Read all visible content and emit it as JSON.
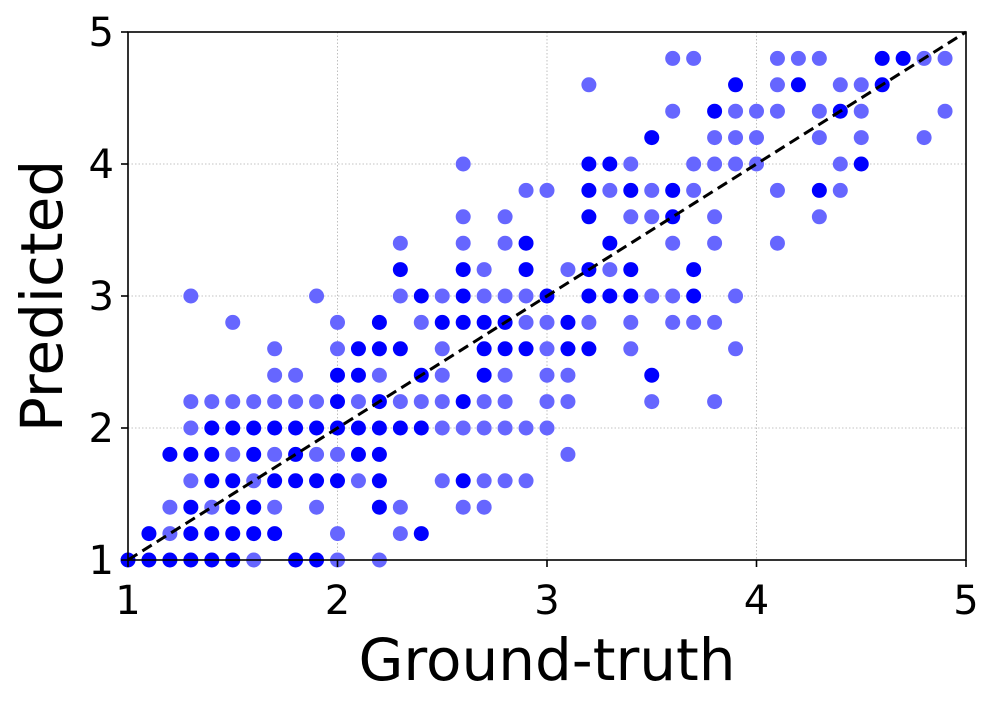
{
  "chart_data": {
    "type": "scatter",
    "title": "",
    "xlabel": "Ground-truth",
    "ylabel": "Predicted",
    "xlim": [
      1,
      5
    ],
    "ylim": [
      1,
      5
    ],
    "xticks": [
      1,
      2,
      3,
      4,
      5
    ],
    "yticks": [
      1,
      2,
      3,
      4,
      5
    ],
    "xtick_labels": [
      "1",
      "2",
      "3",
      "4",
      "5"
    ],
    "ytick_labels": [
      "1",
      "2",
      "3",
      "4",
      "5"
    ],
    "grid": true,
    "reference_line": {
      "from": [
        1,
        1
      ],
      "to": [
        5,
        5
      ],
      "style": "dashed",
      "color": "#000000"
    },
    "colors": {
      "point": "#0000ff",
      "point_light": "#6666ff"
    },
    "points": [
      [
        1.0,
        1.0,
        1
      ],
      [
        1.1,
        1.0,
        1
      ],
      [
        1.1,
        1.2,
        1
      ],
      [
        1.2,
        1.0,
        1
      ],
      [
        1.2,
        1.2,
        0
      ],
      [
        1.2,
        1.8,
        1
      ],
      [
        1.2,
        1.4,
        0
      ],
      [
        1.3,
        1.0,
        1
      ],
      [
        1.3,
        1.2,
        1
      ],
      [
        1.3,
        1.4,
        1
      ],
      [
        1.3,
        1.6,
        0
      ],
      [
        1.3,
        1.8,
        1
      ],
      [
        1.3,
        2.0,
        0
      ],
      [
        1.3,
        2.2,
        0
      ],
      [
        1.3,
        3.0,
        0
      ],
      [
        1.4,
        1.0,
        1
      ],
      [
        1.4,
        1.2,
        1
      ],
      [
        1.4,
        1.4,
        0
      ],
      [
        1.4,
        1.6,
        1
      ],
      [
        1.4,
        1.8,
        1
      ],
      [
        1.4,
        2.0,
        1
      ],
      [
        1.4,
        2.2,
        0
      ],
      [
        1.5,
        1.0,
        1
      ],
      [
        1.5,
        1.2,
        1
      ],
      [
        1.5,
        1.4,
        1
      ],
      [
        1.5,
        1.6,
        1
      ],
      [
        1.5,
        1.8,
        0
      ],
      [
        1.5,
        2.0,
        1
      ],
      [
        1.5,
        2.2,
        0
      ],
      [
        1.5,
        2.8,
        0
      ],
      [
        1.6,
        1.0,
        0
      ],
      [
        1.6,
        1.2,
        1
      ],
      [
        1.6,
        1.4,
        1
      ],
      [
        1.6,
        1.6,
        0
      ],
      [
        1.6,
        1.8,
        1
      ],
      [
        1.6,
        2.0,
        1
      ],
      [
        1.6,
        2.2,
        0
      ],
      [
        1.7,
        1.2,
        1
      ],
      [
        1.7,
        1.4,
        0
      ],
      [
        1.7,
        1.6,
        1
      ],
      [
        1.7,
        1.8,
        0
      ],
      [
        1.7,
        2.0,
        1
      ],
      [
        1.7,
        2.2,
        0
      ],
      [
        1.7,
        2.4,
        0
      ],
      [
        1.7,
        2.6,
        0
      ],
      [
        1.8,
        1.0,
        1
      ],
      [
        1.8,
        1.6,
        1
      ],
      [
        1.8,
        1.8,
        1
      ],
      [
        1.8,
        2.0,
        1
      ],
      [
        1.8,
        2.2,
        0
      ],
      [
        1.8,
        2.4,
        0
      ],
      [
        1.9,
        1.0,
        1
      ],
      [
        1.9,
        1.4,
        0
      ],
      [
        1.9,
        1.6,
        1
      ],
      [
        1.9,
        1.8,
        0
      ],
      [
        1.9,
        2.0,
        1
      ],
      [
        1.9,
        2.2,
        0
      ],
      [
        1.9,
        3.0,
        0
      ],
      [
        2.0,
        1.0,
        0
      ],
      [
        2.0,
        1.2,
        0
      ],
      [
        2.0,
        1.6,
        1
      ],
      [
        2.0,
        1.8,
        0
      ],
      [
        2.0,
        2.0,
        1
      ],
      [
        2.0,
        2.2,
        1
      ],
      [
        2.0,
        2.4,
        1
      ],
      [
        2.0,
        2.6,
        0
      ],
      [
        2.0,
        2.8,
        0
      ],
      [
        2.1,
        1.6,
        0
      ],
      [
        2.1,
        1.8,
        1
      ],
      [
        2.1,
        2.0,
        1
      ],
      [
        2.1,
        2.2,
        0
      ],
      [
        2.1,
        2.4,
        1
      ],
      [
        2.1,
        2.6,
        1
      ],
      [
        2.2,
        1.0,
        0
      ],
      [
        2.2,
        1.4,
        1
      ],
      [
        2.2,
        1.6,
        1
      ],
      [
        2.2,
        1.8,
        1
      ],
      [
        2.2,
        2.0,
        1
      ],
      [
        2.2,
        2.2,
        1
      ],
      [
        2.2,
        2.4,
        0
      ],
      [
        2.2,
        2.6,
        1
      ],
      [
        2.2,
        2.8,
        1
      ],
      [
        2.3,
        1.2,
        0
      ],
      [
        2.3,
        1.4,
        0
      ],
      [
        2.3,
        2.0,
        1
      ],
      [
        2.3,
        2.2,
        0
      ],
      [
        2.3,
        2.6,
        1
      ],
      [
        2.3,
        3.0,
        0
      ],
      [
        2.3,
        3.2,
        1
      ],
      [
        2.3,
        3.4,
        0
      ],
      [
        2.4,
        1.2,
        1
      ],
      [
        2.4,
        2.0,
        1
      ],
      [
        2.4,
        2.2,
        0
      ],
      [
        2.4,
        2.4,
        1
      ],
      [
        2.4,
        2.8,
        0
      ],
      [
        2.4,
        3.0,
        1
      ],
      [
        2.5,
        1.6,
        0
      ],
      [
        2.5,
        2.0,
        0
      ],
      [
        2.5,
        2.2,
        0
      ],
      [
        2.5,
        2.4,
        0
      ],
      [
        2.5,
        2.6,
        0
      ],
      [
        2.5,
        2.8,
        1
      ],
      [
        2.5,
        3.0,
        0
      ],
      [
        2.6,
        1.4,
        0
      ],
      [
        2.6,
        1.6,
        1
      ],
      [
        2.6,
        2.0,
        0
      ],
      [
        2.6,
        2.2,
        1
      ],
      [
        2.6,
        2.8,
        1
      ],
      [
        2.6,
        3.0,
        1
      ],
      [
        2.6,
        3.2,
        1
      ],
      [
        2.6,
        3.4,
        0
      ],
      [
        2.6,
        3.6,
        0
      ],
      [
        2.6,
        4.0,
        0
      ],
      [
        2.7,
        1.4,
        0
      ],
      [
        2.7,
        1.6,
        0
      ],
      [
        2.7,
        2.0,
        0
      ],
      [
        2.7,
        2.2,
        0
      ],
      [
        2.7,
        2.4,
        1
      ],
      [
        2.7,
        2.6,
        1
      ],
      [
        2.7,
        2.8,
        1
      ],
      [
        2.7,
        3.0,
        0
      ],
      [
        2.7,
        3.2,
        0
      ],
      [
        2.8,
        1.6,
        0
      ],
      [
        2.8,
        2.0,
        0
      ],
      [
        2.8,
        2.2,
        0
      ],
      [
        2.8,
        2.4,
        0
      ],
      [
        2.8,
        2.6,
        1
      ],
      [
        2.8,
        2.8,
        1
      ],
      [
        2.8,
        3.0,
        0
      ],
      [
        2.8,
        3.4,
        0
      ],
      [
        2.8,
        3.6,
        0
      ],
      [
        2.9,
        1.6,
        0
      ],
      [
        2.9,
        2.0,
        0
      ],
      [
        2.9,
        2.6,
        1
      ],
      [
        2.9,
        2.8,
        0
      ],
      [
        2.9,
        3.0,
        0
      ],
      [
        2.9,
        3.2,
        1
      ],
      [
        2.9,
        3.4,
        1
      ],
      [
        2.9,
        3.8,
        0
      ],
      [
        3.0,
        2.0,
        0
      ],
      [
        3.0,
        2.2,
        0
      ],
      [
        3.0,
        2.4,
        0
      ],
      [
        3.0,
        2.6,
        0
      ],
      [
        3.0,
        2.8,
        0
      ],
      [
        3.0,
        3.0,
        1
      ],
      [
        3.0,
        3.8,
        0
      ],
      [
        3.1,
        1.8,
        0
      ],
      [
        3.1,
        2.2,
        0
      ],
      [
        3.1,
        2.4,
        0
      ],
      [
        3.1,
        2.6,
        1
      ],
      [
        3.1,
        2.8,
        1
      ],
      [
        3.1,
        3.2,
        0
      ],
      [
        3.2,
        2.6,
        1
      ],
      [
        3.2,
        2.8,
        0
      ],
      [
        3.2,
        3.0,
        1
      ],
      [
        3.2,
        3.2,
        1
      ],
      [
        3.2,
        3.6,
        1
      ],
      [
        3.2,
        3.8,
        1
      ],
      [
        3.2,
        4.0,
        1
      ],
      [
        3.2,
        4.6,
        0
      ],
      [
        3.3,
        3.0,
        1
      ],
      [
        3.3,
        3.2,
        0
      ],
      [
        3.3,
        3.4,
        1
      ],
      [
        3.3,
        3.8,
        0
      ],
      [
        3.3,
        4.0,
        1
      ],
      [
        3.4,
        2.6,
        0
      ],
      [
        3.4,
        2.8,
        0
      ],
      [
        3.4,
        3.0,
        1
      ],
      [
        3.4,
        3.2,
        1
      ],
      [
        3.4,
        3.6,
        0
      ],
      [
        3.4,
        3.8,
        1
      ],
      [
        3.4,
        4.0,
        0
      ],
      [
        3.5,
        2.2,
        0
      ],
      [
        3.5,
        2.4,
        1
      ],
      [
        3.5,
        3.0,
        0
      ],
      [
        3.5,
        3.6,
        0
      ],
      [
        3.5,
        3.8,
        0
      ],
      [
        3.5,
        4.2,
        1
      ],
      [
        3.6,
        2.8,
        0
      ],
      [
        3.6,
        3.0,
        0
      ],
      [
        3.6,
        3.4,
        0
      ],
      [
        3.6,
        3.6,
        1
      ],
      [
        3.6,
        3.8,
        1
      ],
      [
        3.6,
        4.4,
        0
      ],
      [
        3.6,
        4.8,
        0
      ],
      [
        3.7,
        2.8,
        0
      ],
      [
        3.7,
        3.0,
        1
      ],
      [
        3.7,
        3.2,
        1
      ],
      [
        3.7,
        3.8,
        0
      ],
      [
        3.7,
        4.0,
        0
      ],
      [
        3.7,
        4.8,
        0
      ],
      [
        3.8,
        2.2,
        0
      ],
      [
        3.8,
        2.8,
        0
      ],
      [
        3.8,
        3.4,
        0
      ],
      [
        3.8,
        3.6,
        0
      ],
      [
        3.8,
        4.0,
        0
      ],
      [
        3.8,
        4.2,
        0
      ],
      [
        3.8,
        4.4,
        1
      ],
      [
        3.9,
        2.6,
        0
      ],
      [
        3.9,
        3.0,
        0
      ],
      [
        3.9,
        4.0,
        0
      ],
      [
        3.9,
        4.2,
        0
      ],
      [
        3.9,
        4.4,
        0
      ],
      [
        3.9,
        4.6,
        1
      ],
      [
        4.0,
        4.0,
        0
      ],
      [
        4.0,
        4.2,
        0
      ],
      [
        4.0,
        4.4,
        0
      ],
      [
        4.1,
        3.4,
        0
      ],
      [
        4.1,
        3.8,
        0
      ],
      [
        4.1,
        4.4,
        0
      ],
      [
        4.1,
        4.6,
        0
      ],
      [
        4.1,
        4.8,
        0
      ],
      [
        4.2,
        4.6,
        1
      ],
      [
        4.2,
        4.8,
        0
      ],
      [
        4.3,
        3.6,
        0
      ],
      [
        4.3,
        3.8,
        1
      ],
      [
        4.3,
        4.2,
        0
      ],
      [
        4.3,
        4.4,
        0
      ],
      [
        4.3,
        4.8,
        0
      ],
      [
        4.4,
        3.8,
        0
      ],
      [
        4.4,
        4.0,
        0
      ],
      [
        4.4,
        4.4,
        1
      ],
      [
        4.4,
        4.6,
        0
      ],
      [
        4.5,
        4.0,
        1
      ],
      [
        4.5,
        4.2,
        0
      ],
      [
        4.5,
        4.4,
        0
      ],
      [
        4.5,
        4.6,
        0
      ],
      [
        4.6,
        4.6,
        1
      ],
      [
        4.6,
        4.8,
        1
      ],
      [
        4.7,
        4.8,
        1
      ],
      [
        4.8,
        4.2,
        0
      ],
      [
        4.8,
        4.8,
        0
      ],
      [
        4.9,
        4.4,
        0
      ],
      [
        4.9,
        4.8,
        0
      ]
    ]
  }
}
